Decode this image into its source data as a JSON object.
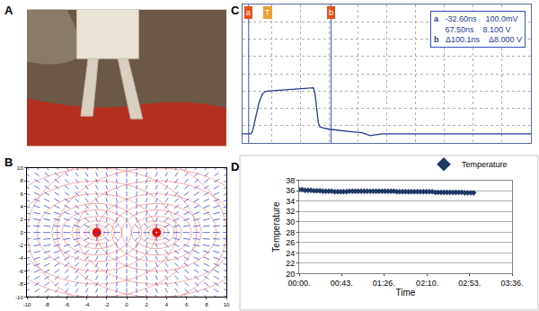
{
  "chart_data": [
    {
      "type": "image",
      "title": "A"
    },
    {
      "type": "vector_field",
      "title": "B",
      "x": [
        -3,
        3
      ],
      "values": [
        0,
        0
      ],
      "colors": [
        "#2040ff",
        "#ffffff"
      ],
      "xlim": [
        -10,
        10
      ],
      "xticks": [
        -10,
        -8,
        -6,
        -4,
        -2,
        0,
        2,
        4,
        6,
        8,
        10
      ],
      "ylim": [
        -10,
        10
      ],
      "yticks": [
        -10,
        -8,
        -6,
        -4,
        -2,
        0,
        2,
        4,
        6,
        8,
        10
      ]
    },
    {
      "type": "line",
      "title": "C",
      "x": [
        -40,
        -30,
        -28,
        -24,
        -20,
        -16,
        -13,
        -10,
        0,
        10,
        20,
        30,
        40,
        46,
        48,
        50,
        52,
        54,
        58,
        65,
        75,
        90,
        105,
        115,
        120,
        130,
        150,
        200,
        250,
        310
      ],
      "values": [
        0.1,
        0.1,
        0.5,
        3.0,
        5.5,
        7.0,
        7.4,
        7.5,
        7.6,
        7.7,
        7.8,
        7.9,
        8.0,
        8.1,
        7.0,
        4.0,
        2.0,
        1.3,
        1.1,
        0.9,
        0.7,
        0.5,
        0.3,
        -0.2,
        -0.1,
        0.1,
        0.1,
        0.1,
        0.1,
        0.1
      ],
      "color": "#1f3a93",
      "xlim": [
        -40,
        310
      ],
      "xticks": [
        -40,
        -5,
        30,
        65,
        100,
        135,
        170,
        205,
        240,
        275,
        310
      ],
      "ylim": [
        -1.5,
        22.5
      ],
      "yticks": [
        -1.5,
        1.5,
        4.5,
        7.5,
        10.5,
        13.5,
        16.5,
        19.5,
        22.5
      ],
      "grid": true,
      "tick_labels": false,
      "cursors": [
        {
          "label": "a",
          "value": -32.6
        },
        {
          "label": "b",
          "value": 67.5
        }
      ],
      "trigger": {
        "label": "T",
        "value": -10
      },
      "readout": [
        {
          "label": "a",
          "values": [
            "-32.60ns",
            "100.0mV"
          ]
        },
        {
          "values": [
            "67.50ns",
            "8.100 V"
          ]
        },
        {
          "label": "b",
          "values": [
            "Δ100.1ns",
            "Δ8.000 V"
          ]
        }
      ]
    },
    {
      "type": "scatter",
      "title": "D",
      "x": [
        0,
        3,
        6,
        9,
        12,
        15,
        18,
        21,
        24,
        27,
        30,
        33,
        36,
        39,
        42,
        45,
        48,
        51,
        54,
        57,
        60,
        63,
        66,
        69,
        72,
        75,
        78,
        81,
        84,
        87,
        90,
        93,
        96,
        99,
        102,
        105,
        108,
        111,
        114,
        117,
        120,
        123,
        126,
        129,
        132,
        135,
        138,
        141,
        144,
        147,
        150,
        153,
        156,
        159,
        162,
        165,
        168,
        171,
        174,
        177
      ],
      "series": [
        {
          "name": "Temperature",
          "color": "#1f3864",
          "marker": "diamond",
          "values": [
            36.2,
            36.2,
            36.1,
            36.1,
            36.1,
            36.0,
            36.0,
            36.0,
            35.9,
            35.9,
            35.9,
            35.9,
            35.8,
            35.8,
            35.8,
            35.8,
            35.8,
            35.9,
            35.9,
            35.9,
            35.9,
            35.9,
            35.9,
            35.9,
            35.9,
            35.9,
            35.9,
            35.9,
            35.9,
            35.9,
            35.9,
            35.9,
            35.9,
            35.8,
            35.8,
            35.8,
            35.8,
            35.8,
            35.8,
            35.8,
            35.8,
            35.8,
            35.8,
            35.8,
            35.8,
            35.8,
            35.7,
            35.7,
            35.7,
            35.7,
            35.7,
            35.7,
            35.7,
            35.7,
            35.7,
            35.7,
            35.6,
            35.6,
            35.6,
            35.6
          ]
        }
      ],
      "xlabel": "Time",
      "ylabel": "Temperature",
      "xlim": [
        0,
        216
      ],
      "xticks": [
        {
          "value": 0,
          "label": "00:00."
        },
        {
          "value": 43,
          "label": "00:43."
        },
        {
          "value": 86,
          "label": "01:26."
        },
        {
          "value": 130,
          "label": "02:10."
        },
        {
          "value": 173,
          "label": "02:53."
        },
        {
          "value": 216,
          "label": "03:36."
        }
      ],
      "ylim": [
        20,
        38
      ],
      "yticks": [
        20,
        22,
        24,
        26,
        28,
        30,
        32,
        34,
        36,
        38
      ],
      "grid": true,
      "legend": "top right"
    }
  ]
}
